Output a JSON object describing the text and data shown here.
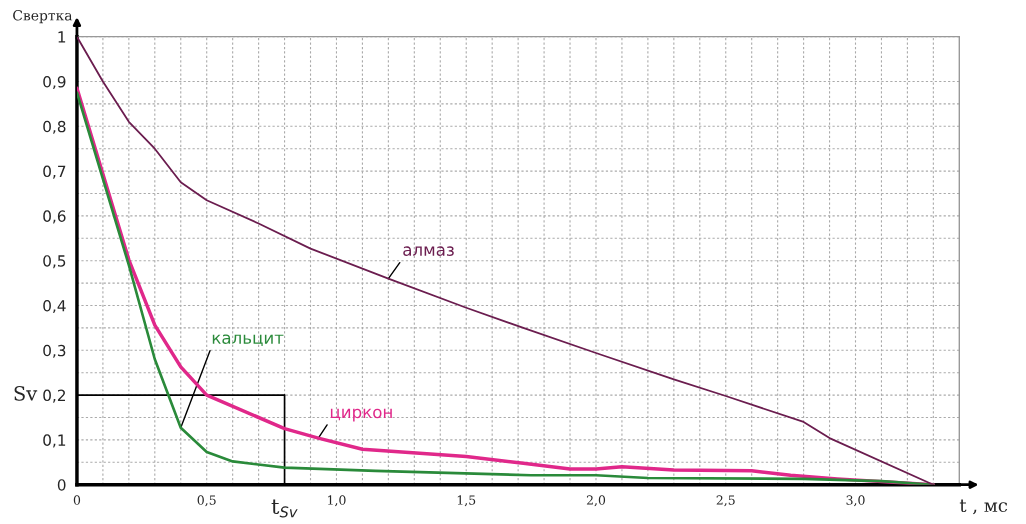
{
  "chart_data": {
    "type": "line",
    "ylabel": "Свертка",
    "xlabel": "t , мс",
    "xlim": [
      0,
      3.4
    ],
    "ylim": [
      0,
      1
    ],
    "xticks": [
      {
        "value": 0,
        "label": "0"
      },
      {
        "value": 0.1,
        "label": null
      },
      {
        "value": 0.2,
        "label": null
      },
      {
        "value": 0.3,
        "label": null
      },
      {
        "value": 0.4,
        "label": null
      },
      {
        "value": 0.5,
        "label": "0,5"
      },
      {
        "value": 0.6,
        "label": null
      },
      {
        "value": 0.7,
        "label": null
      },
      {
        "value": 0.8,
        "label": null
      },
      {
        "value": 0.9,
        "label": null
      },
      {
        "value": 1.0,
        "label": "1,0"
      },
      {
        "value": 1.1,
        "label": null
      },
      {
        "value": 1.2,
        "label": null
      },
      {
        "value": 1.3,
        "label": null
      },
      {
        "value": 1.4,
        "label": null
      },
      {
        "value": 1.5,
        "label": "1,5"
      },
      {
        "value": 1.6,
        "label": null
      },
      {
        "value": 1.7,
        "label": null
      },
      {
        "value": 1.8,
        "label": null
      },
      {
        "value": 1.9,
        "label": null
      },
      {
        "value": 2.0,
        "label": "2,0"
      },
      {
        "value": 2.1,
        "label": null
      },
      {
        "value": 2.2,
        "label": null
      },
      {
        "value": 2.3,
        "label": null
      },
      {
        "value": 2.4,
        "label": null
      },
      {
        "value": 2.5,
        "label": "2,5"
      },
      {
        "value": 2.6,
        "label": null
      },
      {
        "value": 2.7,
        "label": null
      },
      {
        "value": 2.8,
        "label": null
      },
      {
        "value": 2.9,
        "label": null
      },
      {
        "value": 3.0,
        "label": "3,0"
      },
      {
        "value": 3.1,
        "label": null
      },
      {
        "value": 3.2,
        "label": null
      },
      {
        "value": 3.3,
        "label": null
      }
    ],
    "yticks": [
      0,
      {
        "value": 0.05,
        "label": null
      },
      {
        "value": 0.1,
        "label": "0,1"
      },
      {
        "value": 0.15,
        "label": null
      },
      {
        "value": 0.2,
        "label": "0,2"
      },
      {
        "value": 0.25,
        "label": null
      },
      {
        "value": 0.3,
        "label": "0,3"
      },
      {
        "value": 0.35,
        "label": null
      },
      {
        "value": 0.4,
        "label": "0,4"
      },
      {
        "value": 0.45,
        "label": null
      },
      {
        "value": 0.5,
        "label": "0,5"
      },
      {
        "value": 0.55,
        "label": null
      },
      {
        "value": 0.6,
        "label": "0,6"
      },
      {
        "value": 0.65,
        "label": null
      },
      {
        "value": 0.7,
        "label": "0,7"
      },
      {
        "value": 0.75,
        "label": null
      },
      {
        "value": 0.8,
        "label": "0,8"
      },
      {
        "value": 0.85,
        "label": null
      },
      {
        "value": 0.9,
        "label": "0,9"
      },
      1
    ],
    "grid": true,
    "marker": "none",
    "line_style": "solid",
    "series": [
      {
        "name": "алмаз",
        "color": "#6b1d4f",
        "x": [
          0,
          0.1,
          0.2,
          0.3,
          0.4,
          0.5,
          0.7,
          0.9,
          1.2,
          1.5,
          1.72,
          2.0,
          2.3,
          2.5,
          2.8,
          2.9,
          3.3
        ],
        "values": [
          1.0,
          0.9,
          0.81,
          0.75,
          0.675,
          0.635,
          0.583,
          0.527,
          0.46,
          0.395,
          0.35,
          0.294,
          0.235,
          0.198,
          0.14,
          0.104,
          0
        ]
      },
      {
        "name": "кальцит",
        "color": "#2a8a3a",
        "x": [
          0,
          0.2,
          0.3,
          0.4,
          0.5,
          0.6,
          0.8,
          1.15,
          1.75,
          2.0,
          2.2,
          2.8,
          3.1,
          3.3
        ],
        "values": [
          0.875,
          0.49,
          0.28,
          0.127,
          0.073,
          0.052,
          0.038,
          0.031,
          0.021,
          0.021,
          0.015,
          0.013,
          0.008,
          0
        ]
      },
      {
        "name": "циркон",
        "color": "#e0288a",
        "x": [
          0,
          0.2,
          0.3,
          0.4,
          0.5,
          0.8,
          0.93,
          1.1,
          1.5,
          1.72,
          1.9,
          2.0,
          2.1,
          2.3,
          2.6,
          2.75,
          2.93,
          3.3
        ],
        "values": [
          0.885,
          0.502,
          0.356,
          0.263,
          0.2,
          0.125,
          0.104,
          0.079,
          0.063,
          0.048,
          0.035,
          0.035,
          0.04,
          0.033,
          0.031,
          0.021,
          0.013,
          0
        ]
      }
    ],
    "ref_lines": [
      {
        "axis": "y",
        "value": 0.2,
        "label": "Sv",
        "color": "#000000"
      },
      {
        "axis": "x",
        "value": 0.8,
        "label": "t$_{Sv}$",
        "color": "#000000"
      }
    ]
  }
}
